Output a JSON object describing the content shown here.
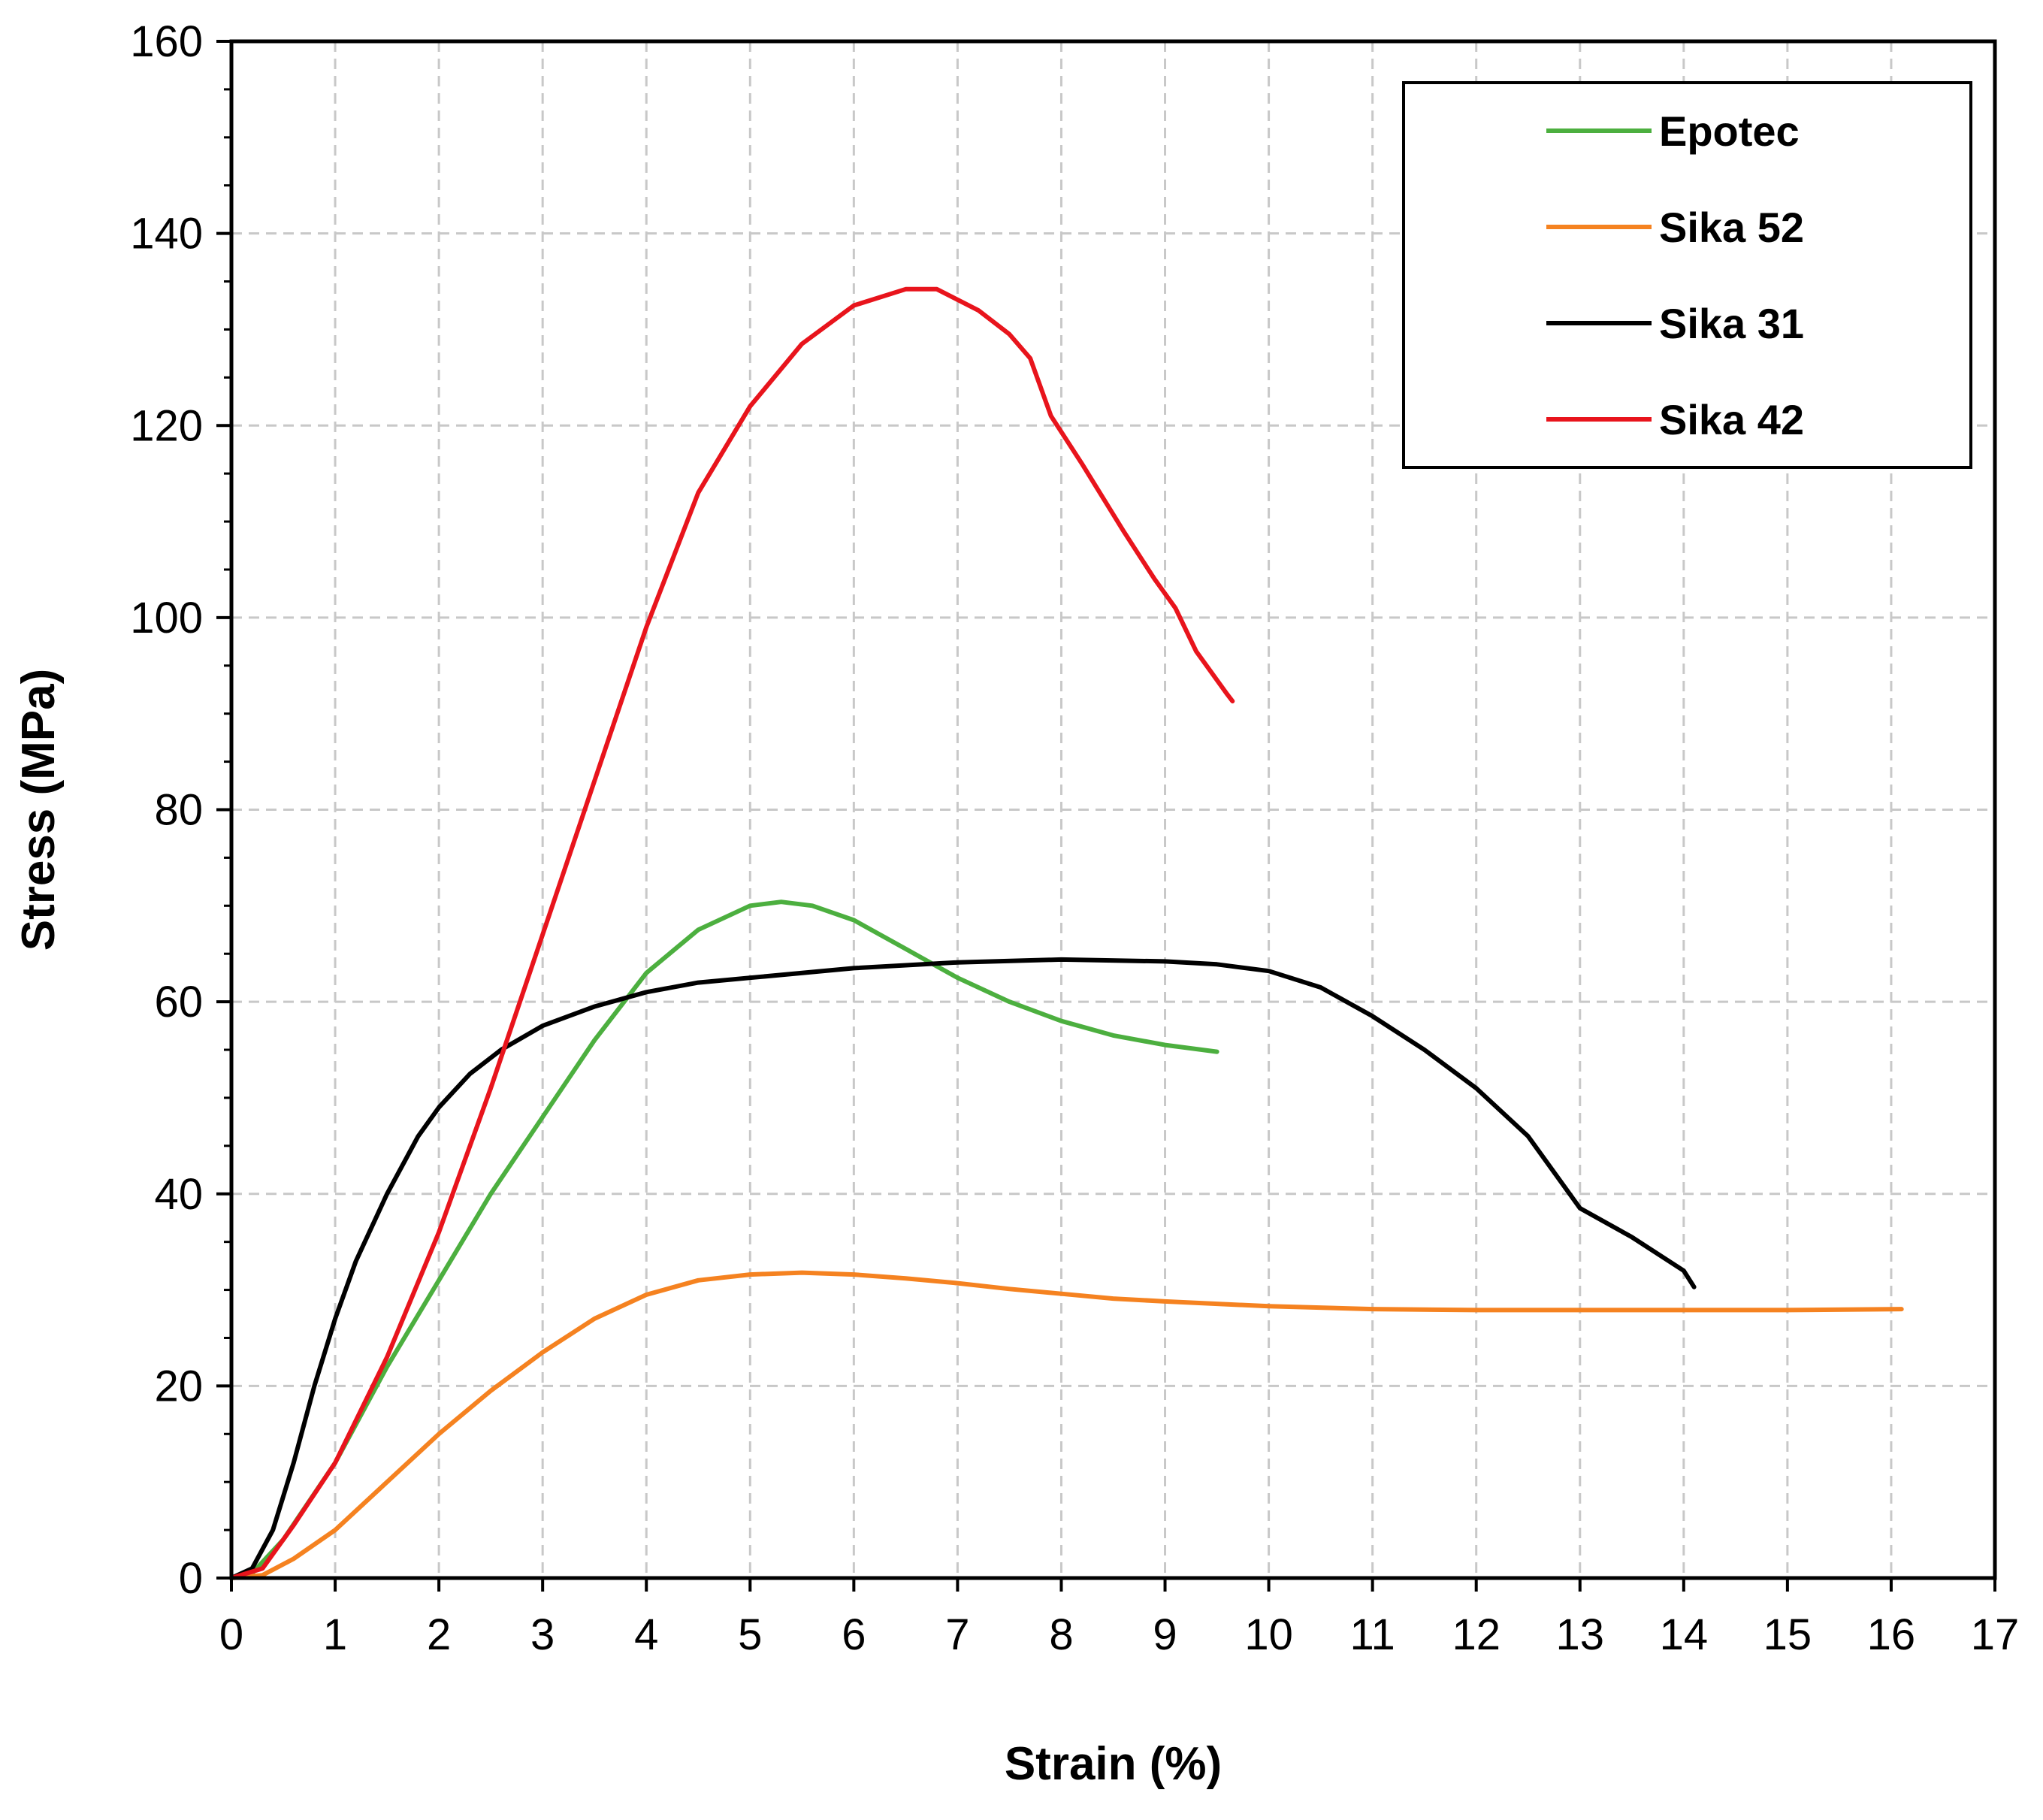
{
  "chart_data": {
    "type": "line",
    "title": "",
    "xlabel": "Strain (%)",
    "ylabel": "Stress (MPa)",
    "xlim": [
      0,
      17
    ],
    "ylim": [
      0,
      160
    ],
    "xticks": [
      0,
      1,
      2,
      3,
      4,
      5,
      6,
      7,
      8,
      9,
      10,
      11,
      12,
      13,
      14,
      15,
      16,
      17
    ],
    "yticks": [
      0,
      20,
      40,
      60,
      80,
      100,
      120,
      140,
      160
    ],
    "grid": true,
    "legend_position": "top-right",
    "series": [
      {
        "name": "Epotec",
        "color": "#4caf3f",
        "points": [
          [
            0,
            0
          ],
          [
            0.2,
            0.5
          ],
          [
            0.5,
            4
          ],
          [
            1,
            12
          ],
          [
            1.5,
            22
          ],
          [
            2,
            31
          ],
          [
            2.5,
            40
          ],
          [
            3,
            48
          ],
          [
            3.5,
            56
          ],
          [
            4,
            63
          ],
          [
            4.5,
            67.5
          ],
          [
            5,
            70
          ],
          [
            5.3,
            70.4
          ],
          [
            5.6,
            70
          ],
          [
            6,
            68.5
          ],
          [
            6.5,
            65.5
          ],
          [
            7,
            62.5
          ],
          [
            7.5,
            60
          ],
          [
            8,
            58
          ],
          [
            8.5,
            56.5
          ],
          [
            9,
            55.5
          ],
          [
            9.5,
            54.8
          ]
        ]
      },
      {
        "name": "Sika 52",
        "color": "#f58220",
        "points": [
          [
            0,
            0
          ],
          [
            0.3,
            0.3
          ],
          [
            0.6,
            2
          ],
          [
            1,
            5
          ],
          [
            1.5,
            10
          ],
          [
            2,
            15
          ],
          [
            2.5,
            19.5
          ],
          [
            3,
            23.5
          ],
          [
            3.5,
            27
          ],
          [
            4,
            29.5
          ],
          [
            4.5,
            31
          ],
          [
            5,
            31.6
          ],
          [
            5.5,
            31.8
          ],
          [
            6,
            31.6
          ],
          [
            6.5,
            31.2
          ],
          [
            7,
            30.7
          ],
          [
            7.5,
            30.1
          ],
          [
            8,
            29.6
          ],
          [
            8.5,
            29.1
          ],
          [
            9,
            28.8
          ],
          [
            10,
            28.3
          ],
          [
            11,
            28
          ],
          [
            12,
            27.9
          ],
          [
            13,
            27.9
          ],
          [
            14,
            27.9
          ],
          [
            15,
            27.9
          ],
          [
            16.1,
            28
          ]
        ]
      },
      {
        "name": "Sika 31",
        "color": "#000000",
        "points": [
          [
            0,
            0
          ],
          [
            0.2,
            1
          ],
          [
            0.4,
            5
          ],
          [
            0.6,
            12
          ],
          [
            0.8,
            20
          ],
          [
            1,
            27
          ],
          [
            1.2,
            33
          ],
          [
            1.5,
            40
          ],
          [
            1.8,
            46
          ],
          [
            2,
            49
          ],
          [
            2.3,
            52.5
          ],
          [
            2.6,
            55
          ],
          [
            3,
            57.5
          ],
          [
            3.5,
            59.5
          ],
          [
            4,
            61
          ],
          [
            4.5,
            62
          ],
          [
            5,
            62.5
          ],
          [
            6,
            63.5
          ],
          [
            7,
            64.1
          ],
          [
            8,
            64.4
          ],
          [
            9,
            64.2
          ],
          [
            9.5,
            63.9
          ],
          [
            10,
            63.2
          ],
          [
            10.5,
            61.5
          ],
          [
            11,
            58.5
          ],
          [
            11.5,
            55
          ],
          [
            12,
            51
          ],
          [
            12.5,
            46
          ],
          [
            12.8,
            41.5
          ],
          [
            13,
            38.5
          ],
          [
            13.5,
            35.5
          ],
          [
            14,
            32
          ],
          [
            14.1,
            30.3
          ]
        ]
      },
      {
        "name": "Sika 42",
        "color": "#e8141c",
        "points": [
          [
            0,
            0
          ],
          [
            0.3,
            1
          ],
          [
            0.6,
            5.5
          ],
          [
            1,
            12
          ],
          [
            1.5,
            23
          ],
          [
            2,
            36
          ],
          [
            2.5,
            51
          ],
          [
            3,
            67
          ],
          [
            3.5,
            83
          ],
          [
            4,
            99
          ],
          [
            4.5,
            113
          ],
          [
            5,
            122
          ],
          [
            5.5,
            128.5
          ],
          [
            6,
            132.5
          ],
          [
            6.5,
            134.2
          ],
          [
            6.8,
            134.2
          ],
          [
            7.2,
            132
          ],
          [
            7.5,
            129.5
          ],
          [
            7.7,
            127
          ],
          [
            7.9,
            121
          ],
          [
            8.2,
            116
          ],
          [
            8.6,
            109
          ],
          [
            8.9,
            104
          ],
          [
            9.1,
            101
          ],
          [
            9.3,
            96.5
          ],
          [
            9.6,
            92
          ],
          [
            9.65,
            91.3
          ]
        ]
      }
    ]
  }
}
